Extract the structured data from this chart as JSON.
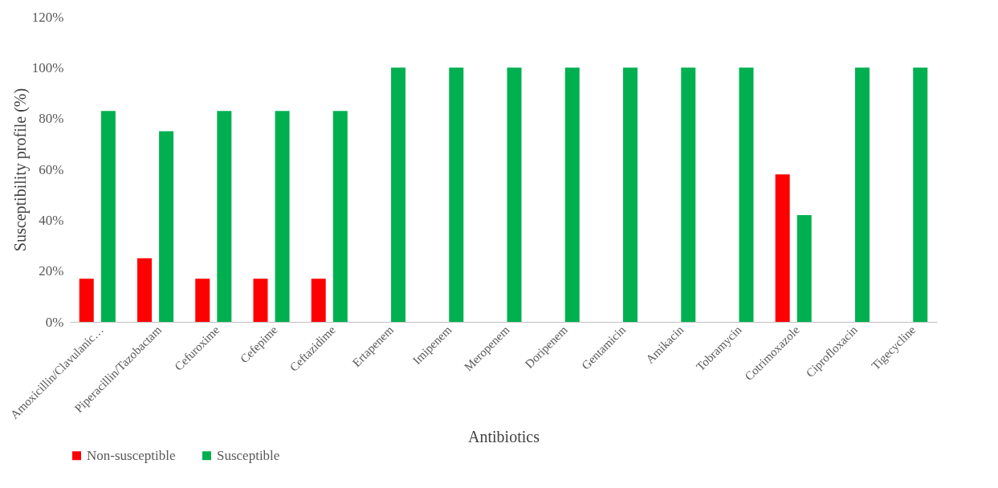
{
  "chart_data": {
    "type": "bar",
    "xlabel": "Antibiotics",
    "ylabel": "Susceptibility profile (%)",
    "categories": [
      "Amoxicillin/Clavulanic…",
      "Piperacillin/Tazobactam",
      "Cefuroxime",
      "Cefepime",
      "Ceftazidime",
      "Ertapenem",
      "Imipenem",
      "Meropenem",
      "Doripenem",
      "Gentamicin",
      "Amikacin",
      "Tobramycin",
      "Cotrimoxazole",
      "Ciprofloxacin",
      "Tigecycline"
    ],
    "series": [
      {
        "name": "Non-susceptible",
        "color": "#ff0000",
        "values": [
          17,
          25,
          17,
          17,
          17,
          0,
          0,
          0,
          0,
          0,
          0,
          0,
          58,
          0,
          0
        ]
      },
      {
        "name": "Susceptible",
        "color": "#00b050",
        "values": [
          83,
          75,
          83,
          83,
          83,
          100,
          100,
          100,
          100,
          100,
          100,
          100,
          42,
          100,
          100
        ]
      }
    ],
    "ylim": [
      0,
      120
    ],
    "yticks": [
      {
        "value": 0,
        "label": "0%"
      },
      {
        "value": 20,
        "label": "20%"
      },
      {
        "value": 40,
        "label": "40%"
      },
      {
        "value": 60,
        "label": "60%"
      },
      {
        "value": 80,
        "label": "80%"
      },
      {
        "value": 100,
        "label": "100%"
      },
      {
        "value": 120,
        "label": "120%"
      }
    ],
    "grid": false,
    "legend": "bottom"
  }
}
